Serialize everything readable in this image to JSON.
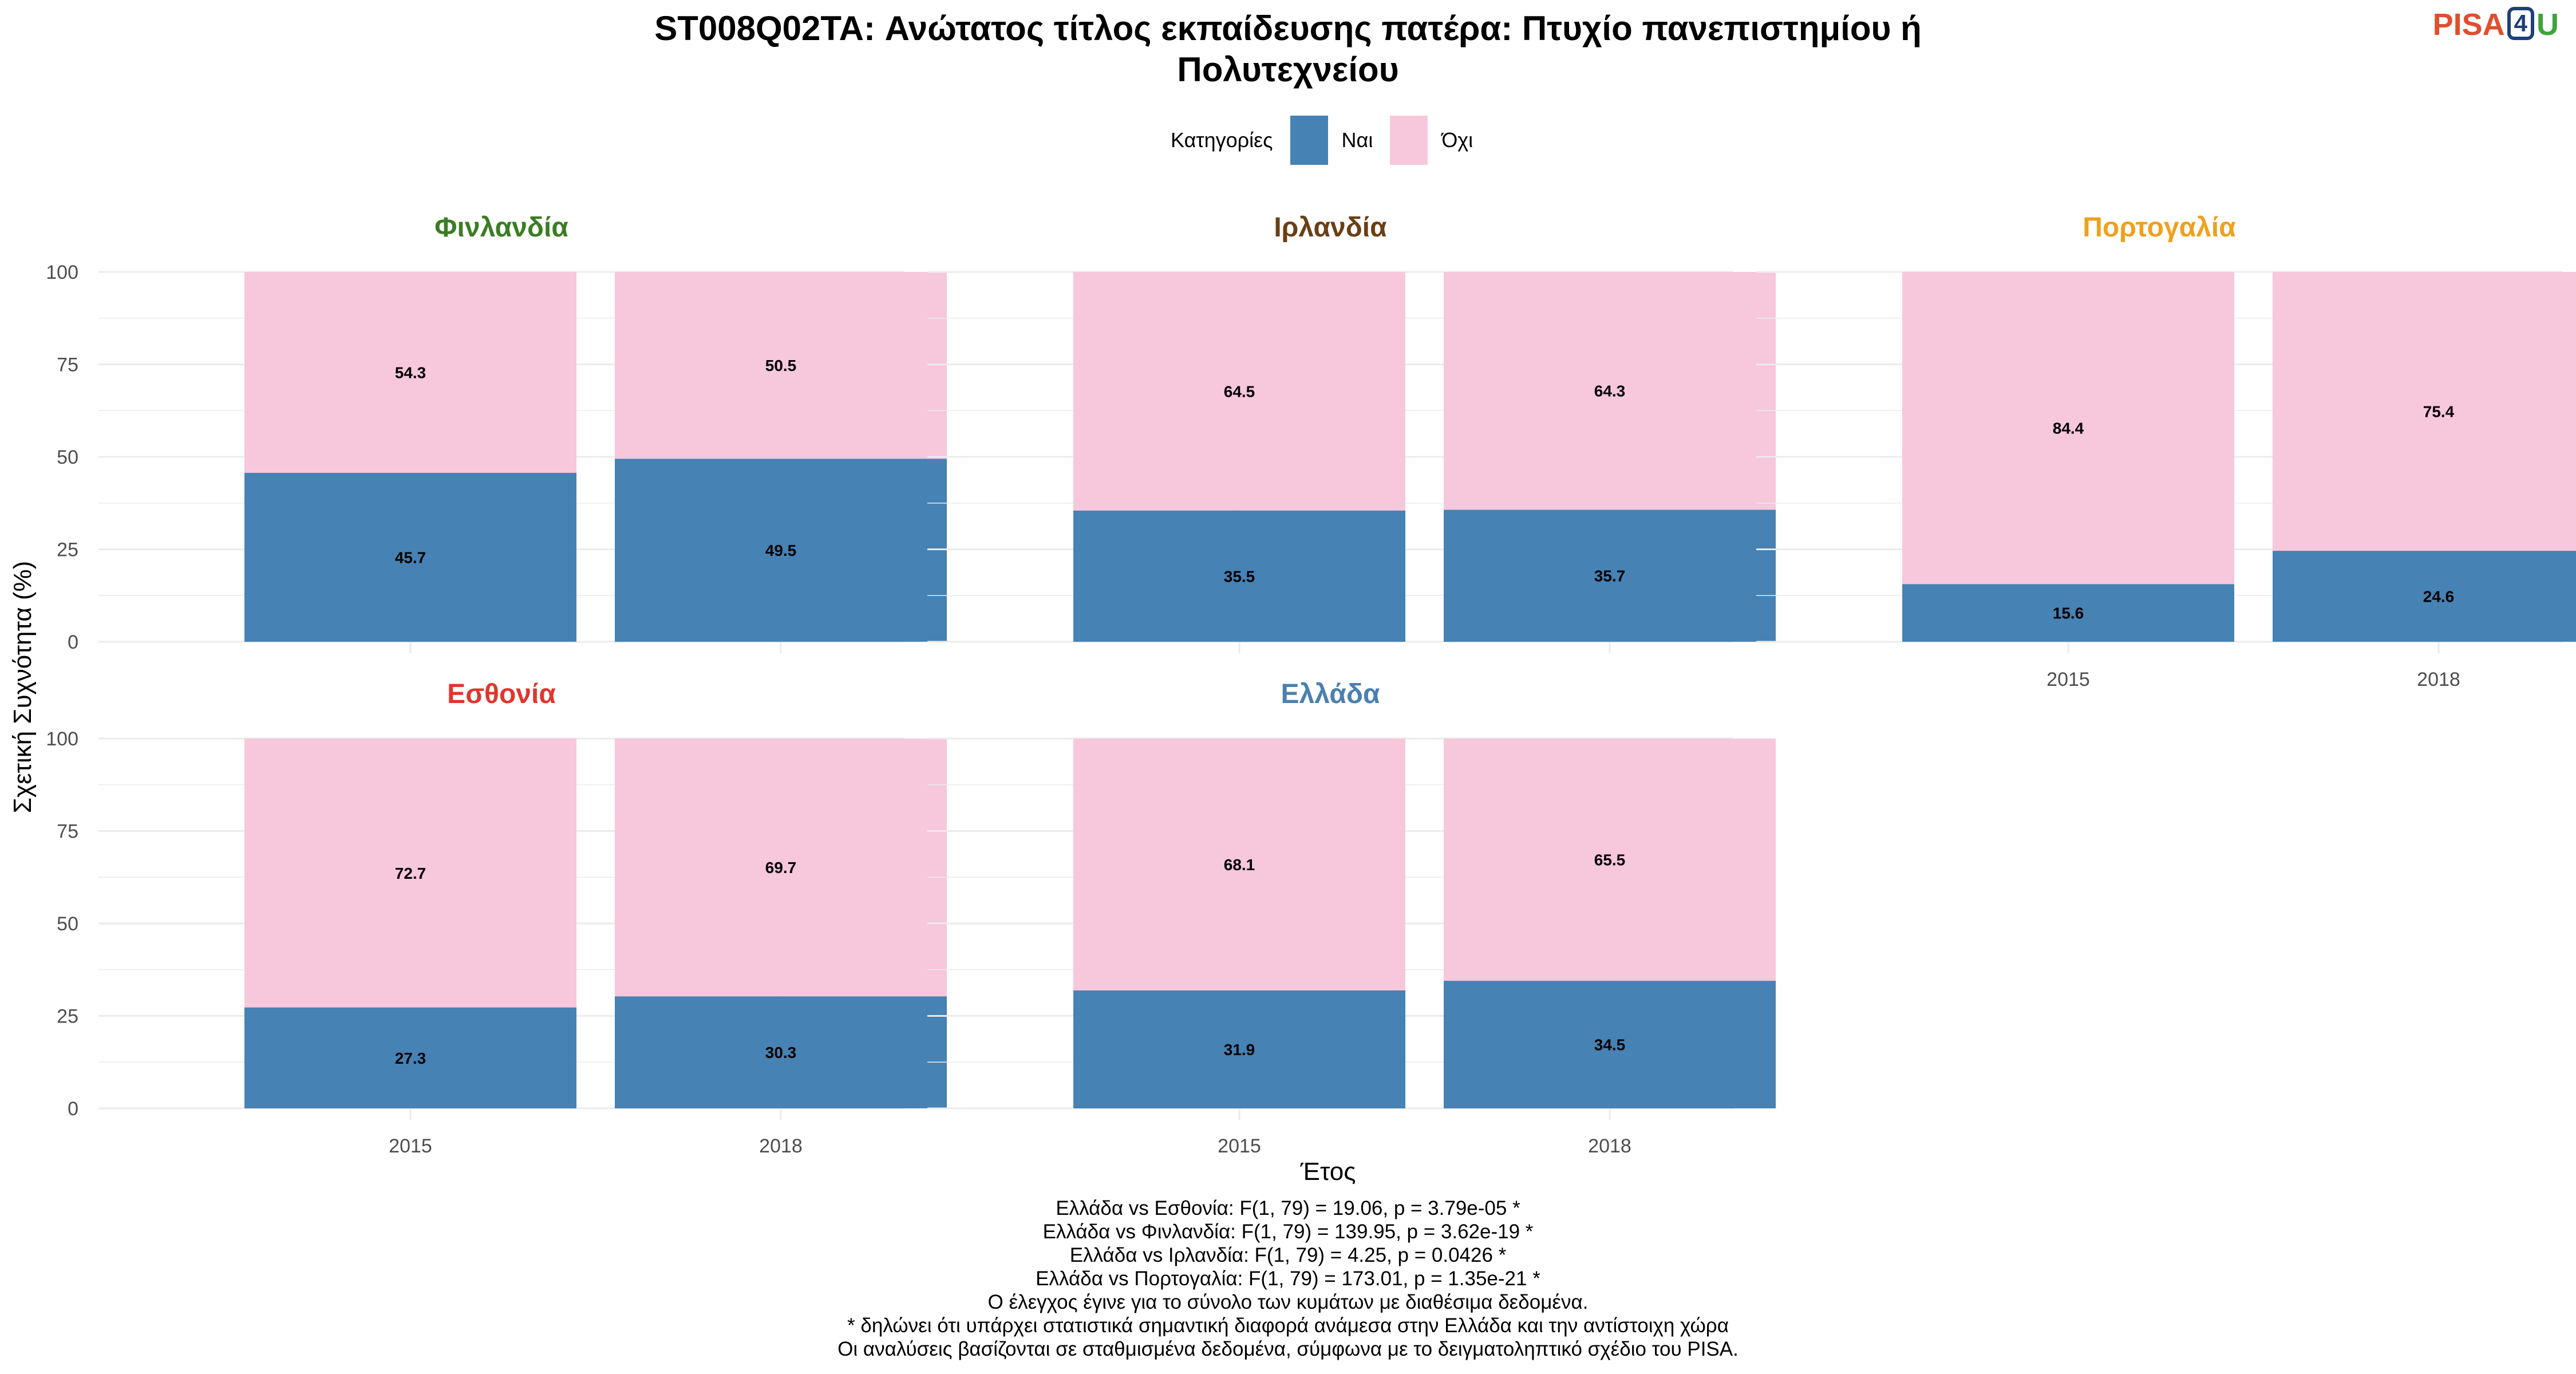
{
  "title_line1": "ST008Q02TA: Ανώτατος τίτλος εκπαίδευσης πατέρα: Πτυχίο πανεπιστημίου ή",
  "title_line2": "Πολυτεχνείου",
  "logo": {
    "pisa": "PISA",
    "four": "4",
    "u": "U"
  },
  "legend": {
    "title": "Κατηγορίες",
    "items": [
      "Ναι",
      "Όχι"
    ]
  },
  "colors": {
    "Ναι": "#4682b4",
    "Όχι": "#f7c7dc",
    "grid": "#ebebeb",
    "label": "#000000"
  },
  "chart_data": {
    "type": "bar",
    "stacked": true,
    "xlabel": "Έτος",
    "ylabel": "Σχετική Συχνότητα (%)",
    "ylim": [
      0,
      100
    ],
    "yticks": [
      0,
      25,
      50,
      75,
      100
    ],
    "categories": [
      "2015",
      "2018"
    ],
    "legend_position": "top",
    "panels": [
      {
        "title": "Φινλανδία",
        "title_color": "#3a7d23",
        "series": [
          {
            "name": "Ναι",
            "values": [
              45.7,
              49.5
            ]
          },
          {
            "name": "Όχι",
            "values": [
              54.3,
              50.5
            ]
          }
        ]
      },
      {
        "title": "Ιρλανδία",
        "title_color": "#6b3f14",
        "series": [
          {
            "name": "Ναι",
            "values": [
              35.5,
              35.7
            ]
          },
          {
            "name": "Όχι",
            "values": [
              64.5,
              64.3
            ]
          }
        ]
      },
      {
        "title": "Πορτογαλία",
        "title_color": "#f0a01e",
        "series": [
          {
            "name": "Ναι",
            "values": [
              15.6,
              24.6
            ]
          },
          {
            "name": "Όχι",
            "values": [
              84.4,
              75.4
            ]
          }
        ]
      },
      {
        "title": "Εσθονία",
        "title_color": "#e0362d",
        "series": [
          {
            "name": "Ναι",
            "values": [
              27.3,
              30.3
            ]
          },
          {
            "name": "Όχι",
            "values": [
              72.7,
              69.7
            ]
          }
        ]
      },
      {
        "title": "Ελλάδα",
        "title_color": "#4a80b0",
        "series": [
          {
            "name": "Ναι",
            "values": [
              31.9,
              34.5
            ]
          },
          {
            "name": "Όχι",
            "values": [
              68.1,
              65.5
            ]
          }
        ]
      }
    ]
  },
  "footer_lines": [
    "Ελλάδα vs Εσθονία: F(1, 79) = 19.06, p = 3.79e-05 *",
    "Ελλάδα vs Φινλανδία: F(1, 79) = 139.95, p = 3.62e-19 *",
    "Ελλάδα vs Ιρλανδία: F(1, 79) = 4.25, p = 0.0426 *",
    "Ελλάδα vs Πορτογαλία: F(1, 79) = 173.01, p = 1.35e-21 *",
    "Ο έλεγχος έγινε για το σύνολο των κυμάτων με διαθέσιμα δεδομένα.",
    "* δηλώνει ότι υπάρχει στατιστικά σημαντική διαφορά ανάμεσα στην Ελλάδα και την αντίστοιχη χώρα",
    "Οι αναλύσεις βασίζονται σε σταθμισμένα δεδομένα, σύμφωνα με το δειγματοληπτικό σχέδιο του PISA."
  ]
}
